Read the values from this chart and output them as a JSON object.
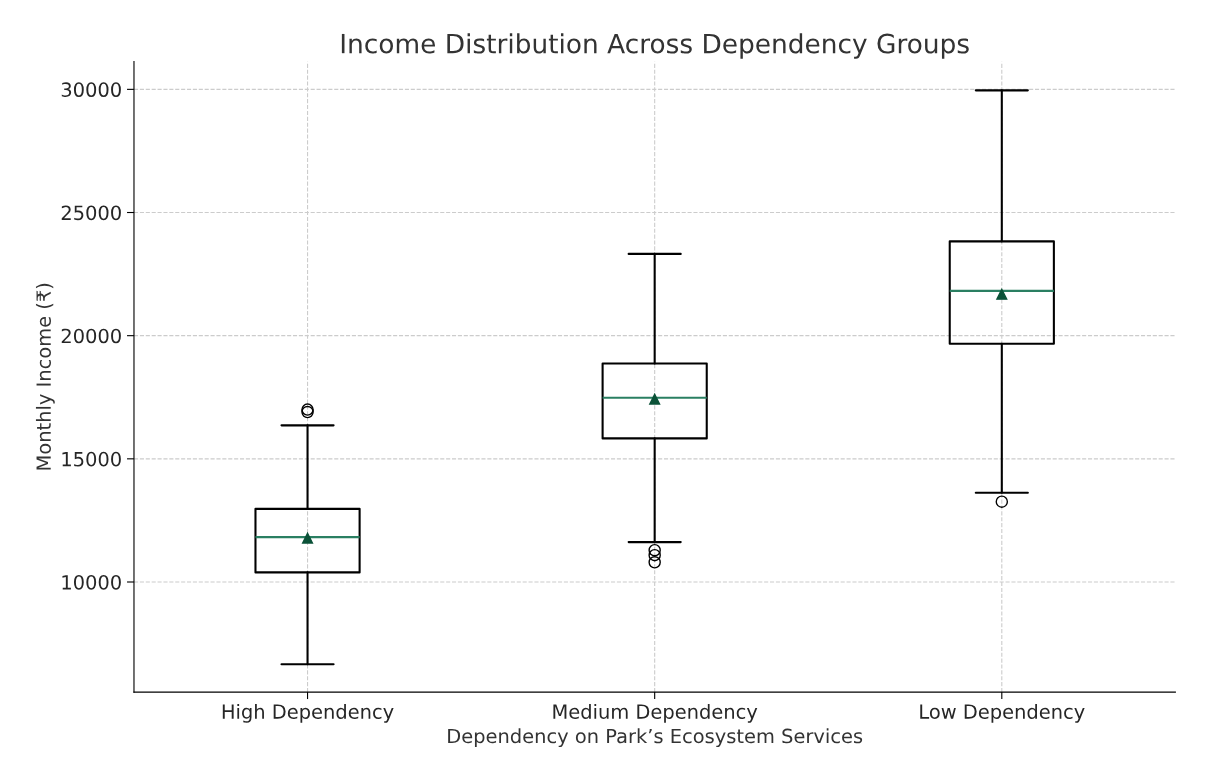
{
  "chart_data": {
    "type": "box",
    "title": "Income Distribution Across Dependency Groups",
    "xlabel": "Dependency on Park’s Ecosystem Services",
    "ylabel": "Monthly Income (₹)",
    "categories": [
      "High Dependency",
      "Medium Dependency",
      "Low Dependency"
    ],
    "series": [
      {
        "color": "#000000",
        "boxes": [
          {
            "low": 6660,
            "q1": 10390,
            "median": 11820,
            "q3": 12970,
            "high": 16360,
            "mean": 11780,
            "outliers": [
              17000,
              16900
            ]
          },
          {
            "low": 11620,
            "q1": 15830,
            "median": 17480,
            "q3": 18870,
            "high": 23320,
            "mean": 17420,
            "outliers": [
              11290,
              11090,
              10800
            ]
          },
          {
            "low": 13620,
            "q1": 19670,
            "median": 21820,
            "q3": 23830,
            "high": 29960,
            "mean": 21680,
            "outliers": [
              13260
            ]
          }
        ]
      }
    ],
    "ylim": [
      5530,
      31130
    ],
    "yticks": [
      10000,
      15000,
      20000,
      25000,
      30000
    ],
    "grid": true
  }
}
